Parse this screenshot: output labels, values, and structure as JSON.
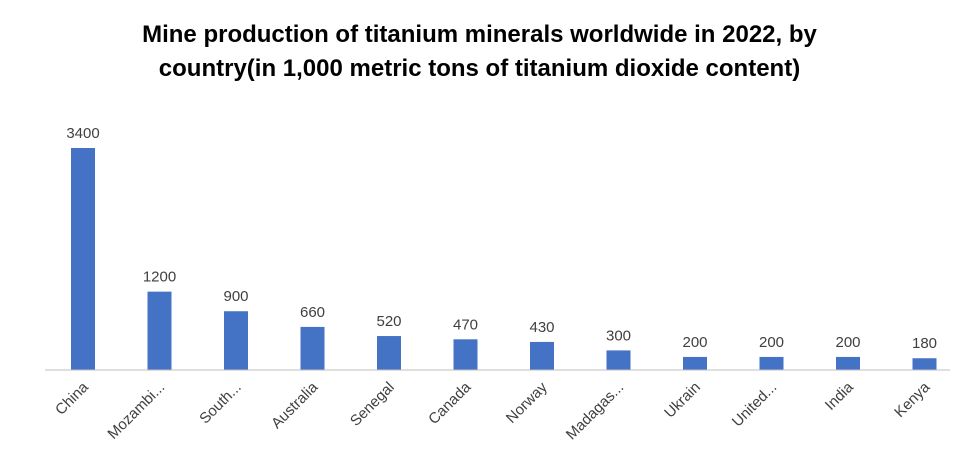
{
  "chart_data": {
    "type": "bar",
    "title_line1": "Mine production of titanium minerals worldwide in 2022, by",
    "title_line2": "country(in 1,000 metric tons of titanium dioxide content)",
    "categories": [
      "China",
      "Mozambi...",
      "South...",
      "Australia",
      "Senegal",
      "Canada",
      "Norway",
      "Madagas...",
      "Ukrain",
      "United...",
      "India",
      "Kenya"
    ],
    "values": [
      3400,
      1200,
      900,
      660,
      520,
      470,
      430,
      300,
      200,
      200,
      200,
      180
    ],
    "value_labels": [
      "3400",
      "1200",
      "900",
      "660",
      "520",
      "470",
      "430",
      "300",
      "200",
      "200",
      "200",
      "180"
    ],
    "bar_color": "#4472C4",
    "ylim": [
      0,
      3400
    ],
    "grid": false,
    "legend": "none"
  }
}
